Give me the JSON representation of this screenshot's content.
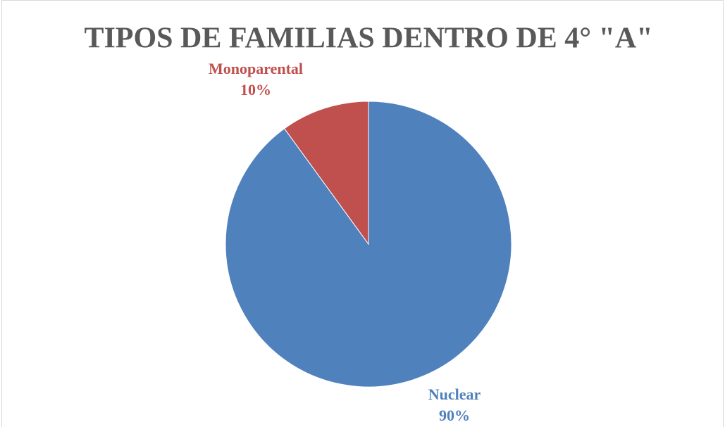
{
  "chart_data": {
    "type": "pie",
    "title": "TIPOS DE FAMILIAS DENTRO DE 4° \"A\"",
    "categories": [
      "Nuclear",
      "Monoparental"
    ],
    "values": [
      90,
      10
    ],
    "value_labels": [
      "90%",
      "10%"
    ],
    "colors": [
      "#4f81bd",
      "#c0504d"
    ]
  }
}
